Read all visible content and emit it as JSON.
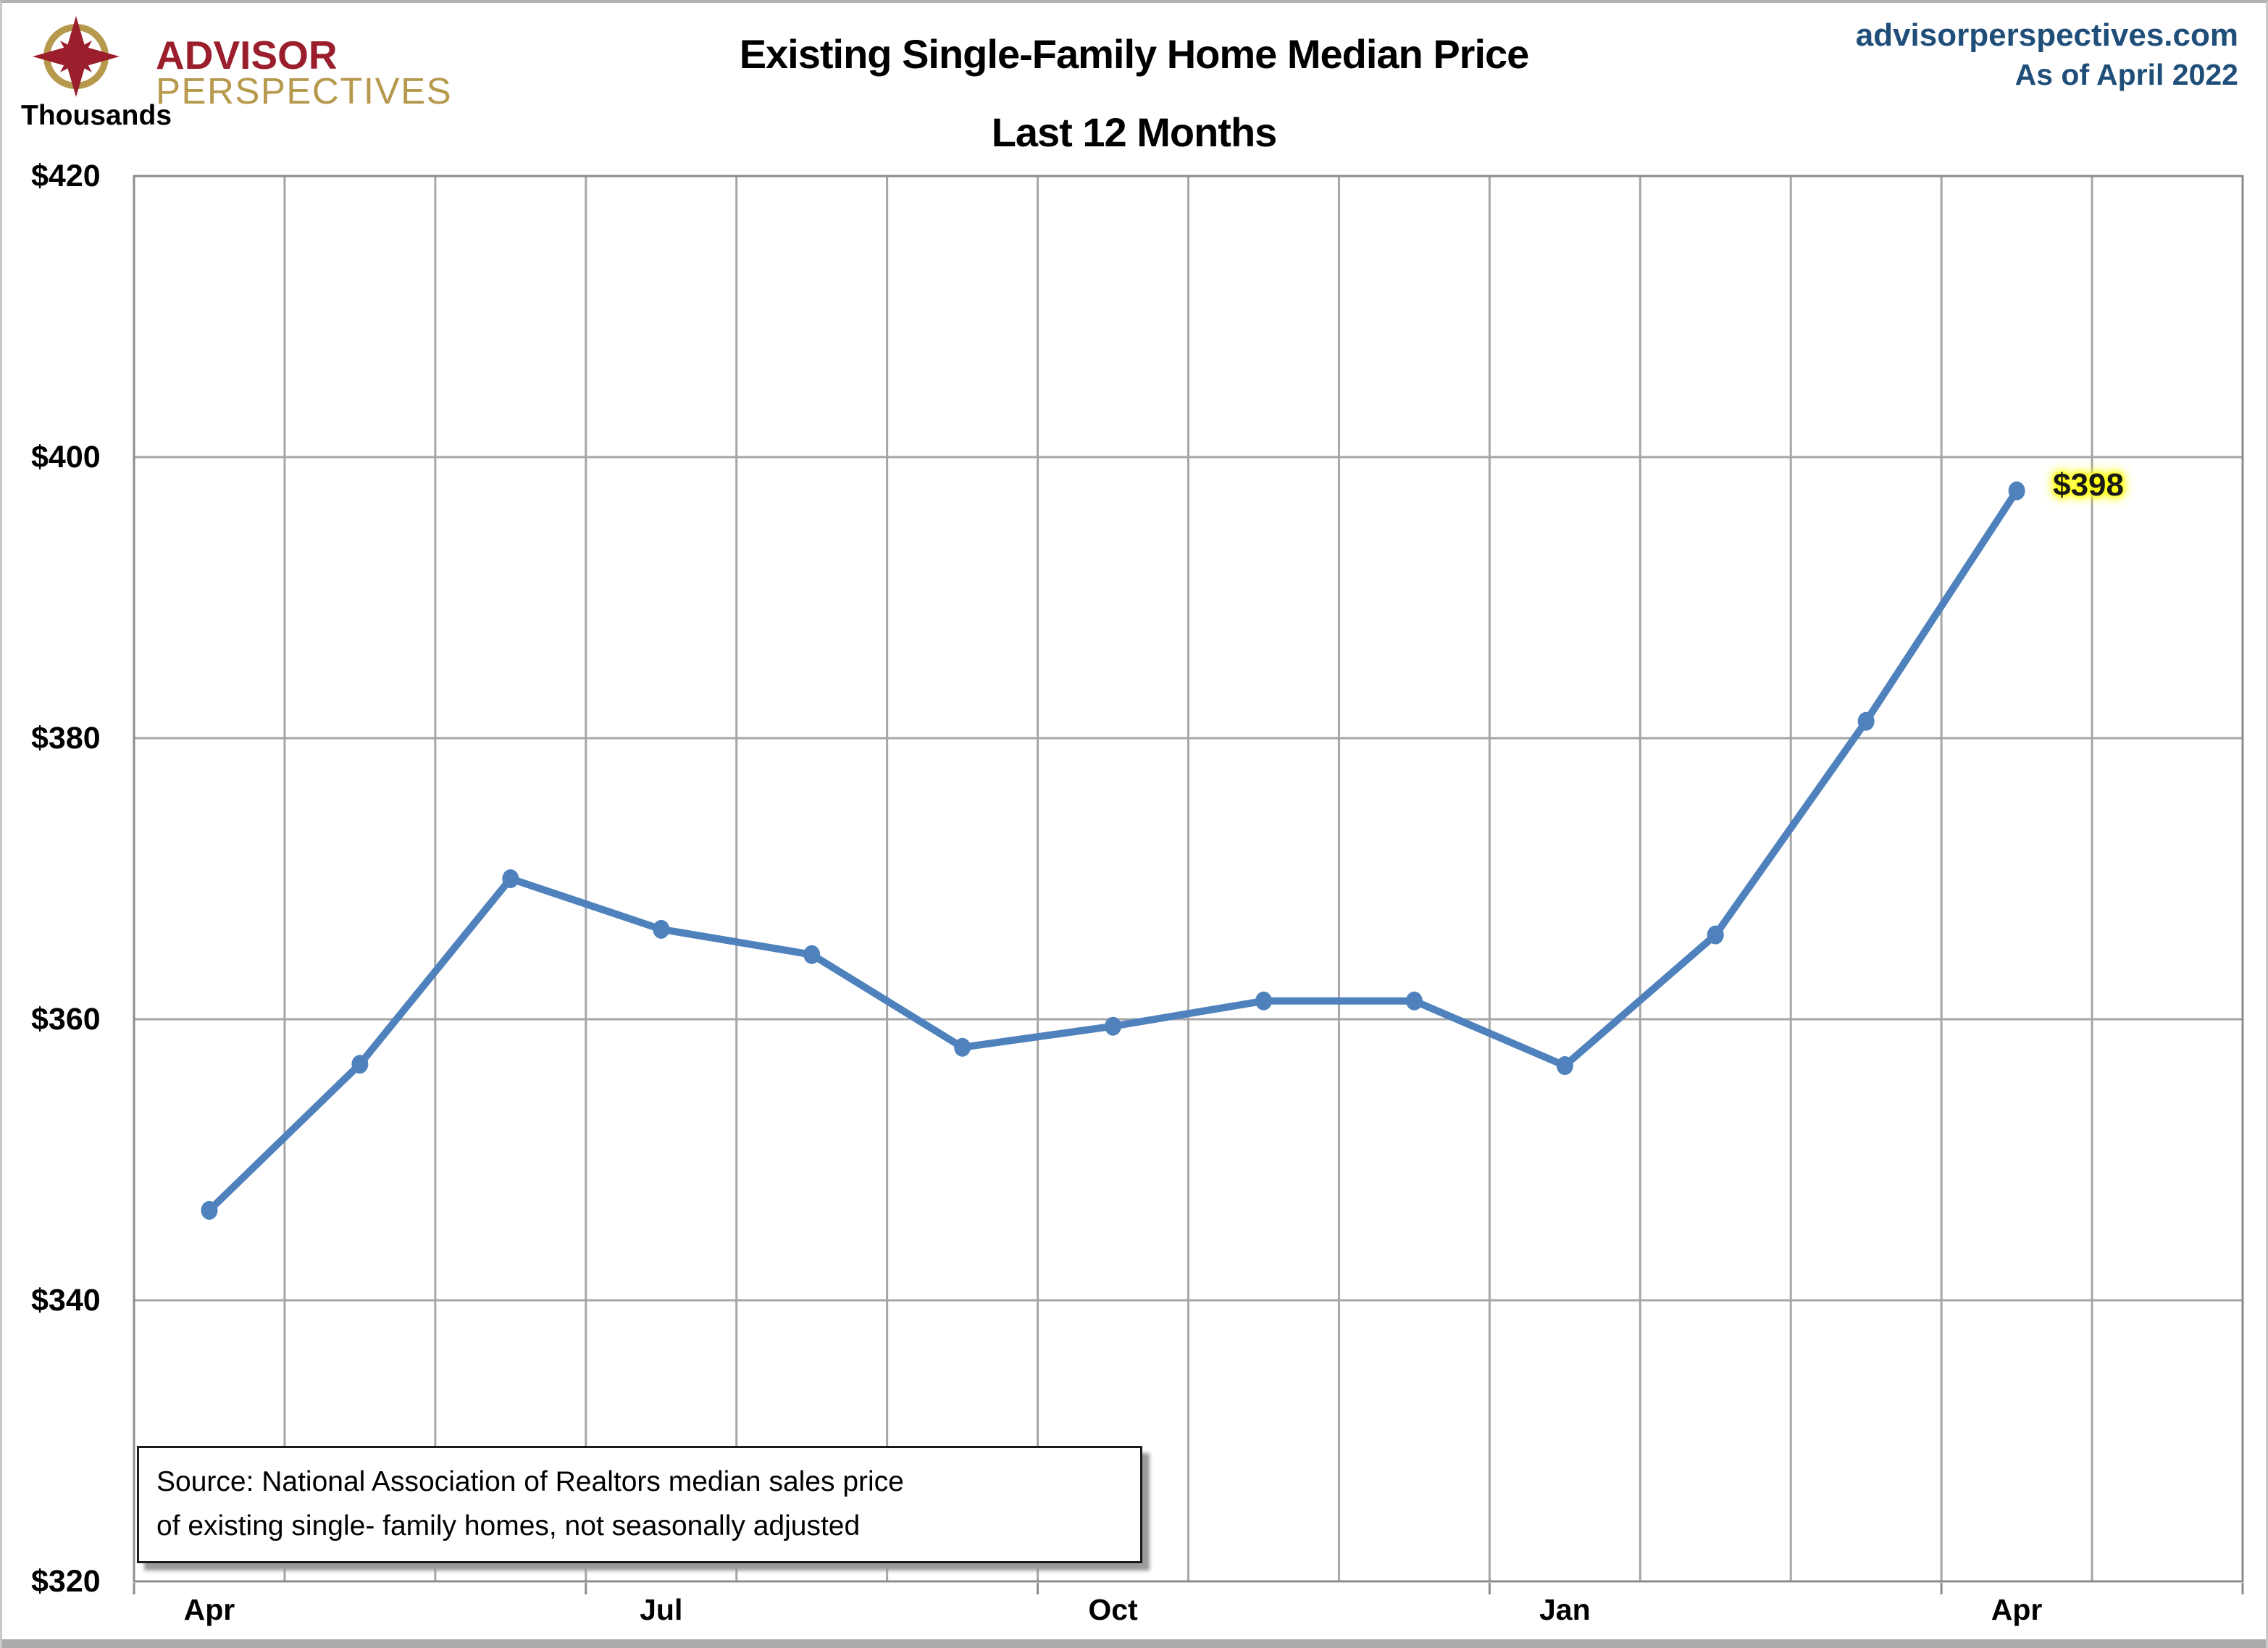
{
  "logo": {
    "line1": "ADVISOR",
    "line2": "PERSPECTIVES",
    "maroon": "#9a1e2c",
    "gold": "#b7994e"
  },
  "header": {
    "title_line1": "Existing Single-Family Home Median Price",
    "title_line2": "Last 12 Months",
    "site": "advisorperspectives.com",
    "as_of": "As of April 2022",
    "site_color": "#1f4e79"
  },
  "axis_unit_label": "Thousands",
  "source_box": {
    "line1": "Source: National Association of Realtors median sales price",
    "line2": "of existing single- family homes, not seasonally adjusted"
  },
  "chart_data": {
    "type": "line",
    "title": "Existing Single-Family Home Median Price — Last 12 Months",
    "ylabel": "Thousands",
    "unit": "thousands of US dollars",
    "x": [
      "Apr 2021",
      "May 2021",
      "Jun 2021",
      "Jul 2021",
      "Aug 2021",
      "Sep 2021",
      "Oct 2021",
      "Nov 2021",
      "Dec 2021",
      "Jan 2022",
      "Feb 2022",
      "Mar 2022",
      "Apr 2022"
    ],
    "values": [
      346.4,
      356.8,
      370.0,
      366.4,
      364.6,
      358.0,
      359.5,
      361.3,
      361.3,
      356.7,
      366.0,
      381.2,
      397.6
    ],
    "ylim": [
      320,
      420
    ],
    "ytick_step": 20,
    "ytick_labels_top_down": [
      "$420",
      "$400",
      "$380",
      "$360",
      "$340",
      "$320"
    ],
    "xtick_labels": [
      {
        "index": 0,
        "label": "Apr"
      },
      {
        "index": 3,
        "label": "Jul"
      },
      {
        "index": 6,
        "label": "Oct"
      },
      {
        "index": 9,
        "label": "Jan"
      },
      {
        "index": 12,
        "label": "Apr"
      }
    ],
    "x_slots": 14,
    "last_point_label": "$398",
    "grid": "both",
    "legend": "none",
    "line_color": "#4F81BD",
    "marker_color": "#4F81BD",
    "grid_color": "#a6a6a6",
    "border_color": "#8c8c8c",
    "label_highlight_color": "#ffff00"
  }
}
